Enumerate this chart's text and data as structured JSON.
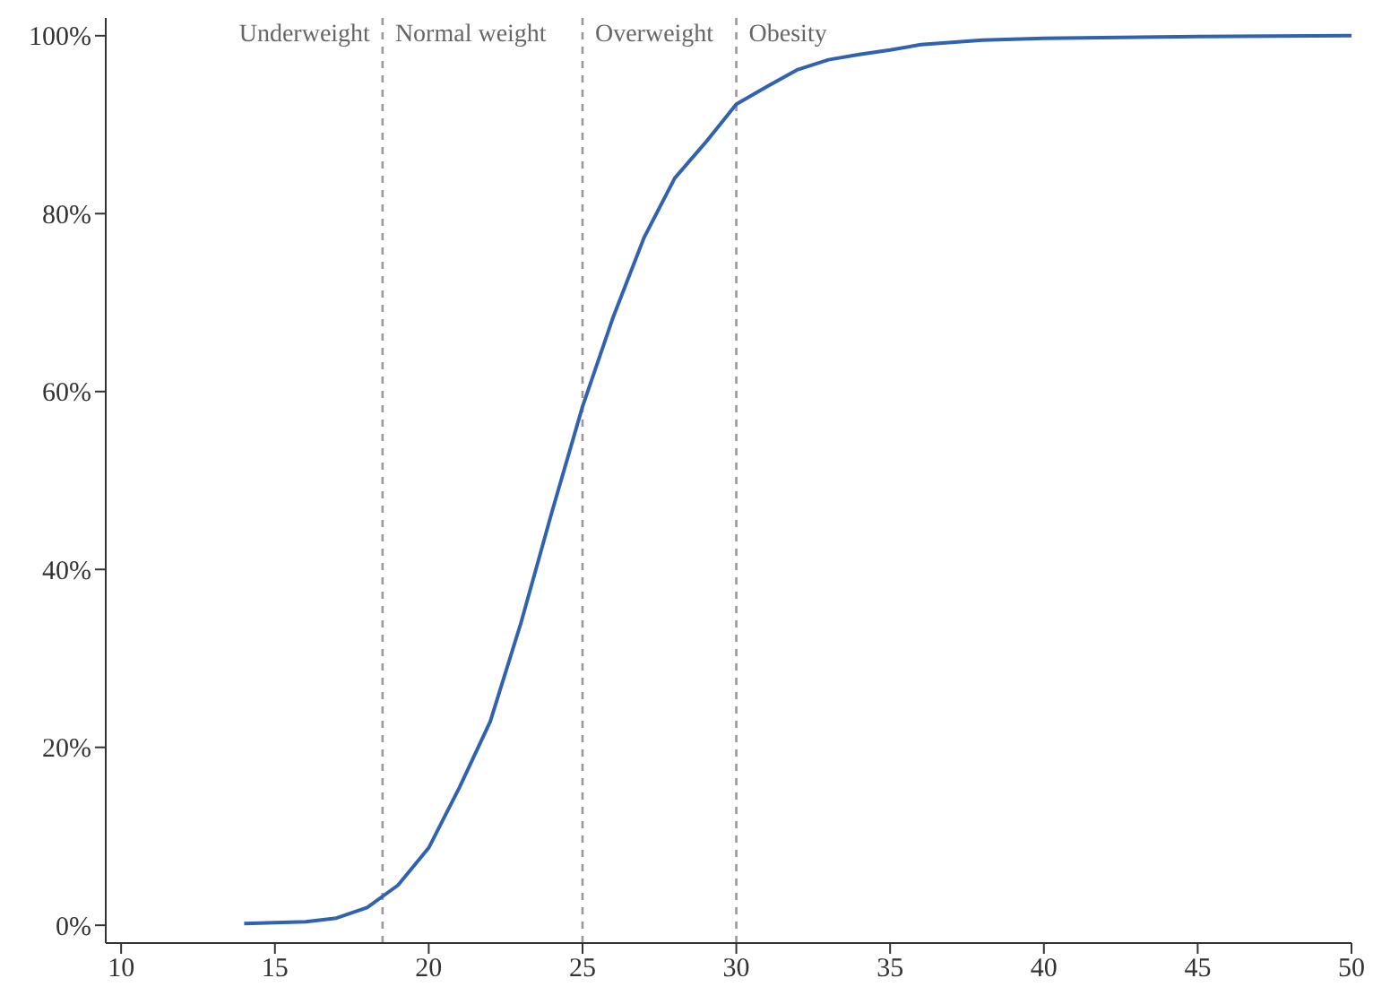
{
  "chart_data": {
    "type": "line",
    "x": [
      14,
      15,
      16,
      17,
      18,
      19,
      20,
      21,
      22,
      23,
      24,
      25,
      26,
      27,
      28,
      29,
      30,
      31,
      32,
      33,
      34,
      35,
      36,
      38,
      40,
      45,
      50
    ],
    "series": [
      {
        "color": "#2f62b0",
        "values": [
          0.2,
          0.3,
          0.4,
          0.8,
          2,
          4.5,
          8.7,
          15.5,
          22.9,
          34,
          46.4,
          58.3,
          68.4,
          77.3,
          84,
          88,
          92.3,
          94.3,
          96.2,
          97.3,
          97.9,
          98.4,
          99,
          99.5,
          99.7,
          99.9,
          100
        ]
      }
    ],
    "xlim": [
      9.5,
      50
    ],
    "xticks": [
      10,
      15,
      20,
      25,
      30,
      35,
      40,
      45,
      50
    ],
    "ylim": [
      -2,
      102
    ],
    "yticks": [
      {
        "value": 0,
        "label": "0%"
      },
      {
        "value": 20,
        "label": "20%"
      },
      {
        "value": 40,
        "label": "40%"
      },
      {
        "value": 60,
        "label": "60%"
      },
      {
        "value": 80,
        "label": "80%"
      },
      {
        "value": 100,
        "label": "100%"
      }
    ],
    "ref_lines": [
      {
        "axis": "x",
        "value": 18.5,
        "color": "#999999",
        "line_style": "dashed"
      },
      {
        "axis": "x",
        "value": 25,
        "color": "#999999",
        "line_style": "dashed"
      },
      {
        "axis": "x",
        "value": 30,
        "color": "#999999",
        "line_style": "dashed"
      }
    ],
    "annotations": [
      "Underweight",
      "Normal weight",
      "Overweight",
      "Obesity"
    ],
    "grid": false,
    "legend": false,
    "marker": "none",
    "line_style": "solid"
  }
}
